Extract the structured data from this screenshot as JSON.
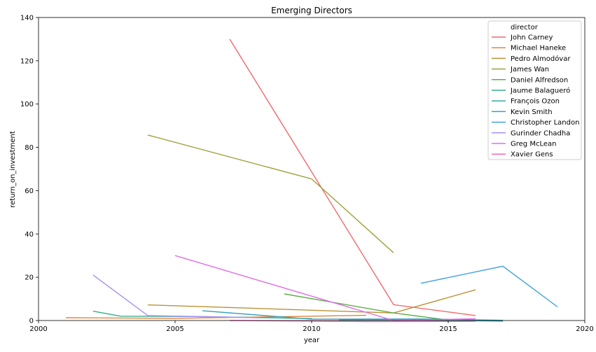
{
  "chart_data": {
    "type": "line",
    "title": "Emerging Directors",
    "xlabel": "year",
    "ylabel": "return_on_investment",
    "xlim": [
      2000,
      2020
    ],
    "ylim": [
      0,
      140
    ],
    "xticks": [
      2000,
      2005,
      2010,
      2015,
      2020
    ],
    "yticks": [
      0,
      20,
      40,
      60,
      80,
      100,
      120,
      140
    ],
    "grid": false,
    "legend": {
      "title": "director",
      "position": "top-right"
    },
    "series": [
      {
        "name": "John Carney",
        "color": "#f2686c",
        "points": [
          [
            2007,
            130
          ],
          [
            2013,
            7.3
          ],
          [
            2016,
            2.3
          ]
        ]
      },
      {
        "name": "Michael Haneke",
        "color": "#e1853a",
        "points": [
          [
            2001,
            1.3
          ],
          [
            2005,
            1.0
          ],
          [
            2009,
            1.8
          ],
          [
            2012,
            2.4
          ]
        ]
      },
      {
        "name": "Pedro Almodóvar",
        "color": "#bb9236",
        "points": [
          [
            2004,
            7.2
          ],
          [
            2008,
            5.6
          ],
          [
            2013,
            3.5
          ],
          [
            2016,
            14.2
          ]
        ]
      },
      {
        "name": "James Wan",
        "color": "#a0a03c",
        "points": [
          [
            2004,
            85.7
          ],
          [
            2010,
            65.4
          ],
          [
            2013,
            31.3
          ]
        ]
      },
      {
        "name": "Daniel Alfredson",
        "color": "#5fae48",
        "points": [
          [
            2009,
            12.3
          ],
          [
            2013,
            3.5
          ],
          [
            2015,
            0.2
          ]
        ]
      },
      {
        "name": "Jaume Balagueró",
        "color": "#33ad8b",
        "points": [
          [
            2002,
            4.3
          ],
          [
            2003,
            2.0
          ],
          [
            2006,
            1.8
          ],
          [
            2010,
            0.9
          ]
        ]
      },
      {
        "name": "François Ozon",
        "color": "#36aaa4",
        "points": [
          [
            2011,
            0.3
          ],
          [
            2014,
            0.2
          ],
          [
            2017,
            -0.3
          ]
        ]
      },
      {
        "name": "Kevin Smith",
        "color": "#389fbf",
        "points": [
          [
            2006,
            4.5
          ],
          [
            2010,
            0.6
          ],
          [
            2014,
            0.7
          ],
          [
            2017,
            0.1
          ]
        ]
      },
      {
        "name": "Christopher Landon",
        "color": "#41a0e0",
        "points": [
          [
            2014,
            17.2
          ],
          [
            2017,
            25.1
          ],
          [
            2019,
            6.3
          ]
        ]
      },
      {
        "name": "Gurinder Chadha",
        "color": "#a98ff4",
        "points": [
          [
            2002,
            21
          ],
          [
            2004,
            2.3
          ],
          [
            2008,
            1.3
          ]
        ]
      },
      {
        "name": "Greg McLean",
        "color": "#e06ee8",
        "points": [
          [
            2005,
            30
          ],
          [
            2013,
            0.0
          ],
          [
            2016,
            0.8
          ]
        ]
      },
      {
        "name": "Xavier Gens",
        "color": "#f267b5",
        "points": [
          [
            2007,
            0.0
          ],
          [
            2012,
            -0.5
          ],
          [
            2016,
            -0.4
          ]
        ]
      }
    ]
  }
}
